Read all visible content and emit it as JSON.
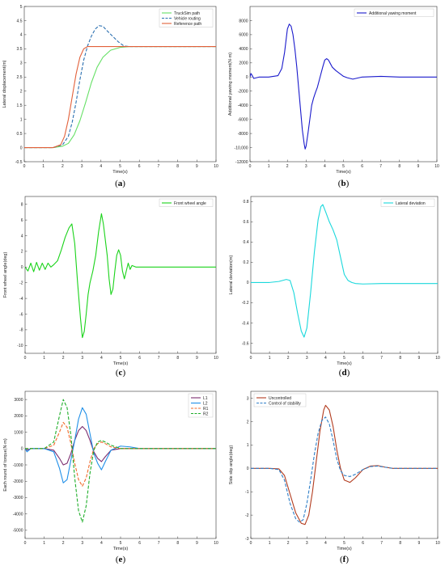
{
  "chart_data": [
    {
      "type": "line",
      "panel": "(a)",
      "panel_letter": "a",
      "xlabel": "Time(s)",
      "ylabel": "Lateral displacement(m)",
      "xlim": [
        0,
        10
      ],
      "ylim": [
        -0.5,
        5
      ],
      "xticks": [
        0,
        1,
        2,
        3,
        4,
        5,
        6,
        7,
        8,
        9,
        10
      ],
      "yticks": [
        -0.5,
        0,
        0.5,
        1,
        1.5,
        2,
        2.5,
        3,
        3.5,
        4,
        4.5,
        5
      ],
      "ytick_labels": [
        "-0.5",
        "0",
        "0.5",
        "1",
        "1.5",
        "2",
        "2.5",
        "3",
        "3.5",
        "4",
        "4.5",
        "5"
      ],
      "legend": "top-right",
      "series": [
        {
          "name": "TruckSim path",
          "color": "#66e066",
          "dash": "solid",
          "x": [
            0,
            1.5,
            2,
            2.3,
            2.6,
            2.9,
            3.2,
            3.5,
            3.8,
            4.1,
            4.5,
            5,
            5.5,
            6,
            10
          ],
          "y": [
            0,
            0,
            0.05,
            0.15,
            0.45,
            0.95,
            1.6,
            2.3,
            2.85,
            3.2,
            3.45,
            3.55,
            3.58,
            3.58,
            3.58
          ]
        },
        {
          "name": "Vehicle routing",
          "color": "#2a6fb0",
          "dash": "4,2",
          "x": [
            0,
            1.5,
            2,
            2.3,
            2.5,
            2.7,
            2.9,
            3.1,
            3.3,
            3.5,
            3.7,
            3.9,
            4.1,
            4.3,
            4.6,
            4.9,
            5.2,
            5.5,
            6,
            10
          ],
          "y": [
            0,
            0,
            0.1,
            0.4,
            0.9,
            1.6,
            2.4,
            3.1,
            3.6,
            3.95,
            4.2,
            4.32,
            4.3,
            4.15,
            3.95,
            3.75,
            3.6,
            3.58,
            3.58,
            3.58
          ]
        },
        {
          "name": "Reference path",
          "color": "#e2603a",
          "dash": "solid",
          "x": [
            0,
            1.5,
            1.9,
            2.1,
            2.3,
            2.5,
            2.7,
            2.9,
            3.1,
            3.3,
            3.6,
            10
          ],
          "y": [
            0,
            0,
            0.1,
            0.4,
            1.0,
            1.8,
            2.6,
            3.2,
            3.5,
            3.58,
            3.58,
            3.58
          ]
        }
      ]
    },
    {
      "type": "line",
      "panel": "(b)",
      "panel_letter": "b",
      "xlabel": "Time(s)",
      "ylabel": "Additional yawing moment(N·m)",
      "xlim": [
        0,
        10
      ],
      "ylim": [
        -12000,
        10000
      ],
      "xticks": [
        0,
        1,
        2,
        3,
        4,
        5,
        6,
        7,
        8,
        9,
        10
      ],
      "yticks": [
        -12000,
        -10000,
        -8000,
        -6000,
        -4000,
        -2000,
        0,
        2000,
        4000,
        6000,
        8000
      ],
      "ytick_labels": [
        "-12000",
        "-10,000",
        "-8000",
        "-6000",
        "-4000",
        "-2000",
        "0",
        "2000",
        "4000",
        "6000",
        "8000"
      ],
      "legend": "top-right",
      "series": [
        {
          "name": "Additional yawing moment",
          "color": "#1a1acc",
          "dash": "solid",
          "x": [
            0,
            0.05,
            0.1,
            0.2,
            0.35,
            0.5,
            1,
            1.5,
            1.7,
            1.85,
            2,
            2.1,
            2.2,
            2.3,
            2.4,
            2.5,
            2.6,
            2.7,
            2.8,
            2.9,
            2.95,
            3,
            3.1,
            3.2,
            3.3,
            3.4,
            3.5,
            3.6,
            3.7,
            3.8,
            3.9,
            4,
            4.1,
            4.2,
            4.3,
            4.4,
            4.6,
            4.8,
            5,
            5.2,
            5.5,
            6,
            7,
            8,
            9,
            10
          ],
          "y": [
            0,
            500,
            300,
            -200,
            -100,
            0,
            0,
            200,
            1200,
            3500,
            6800,
            7500,
            7200,
            6000,
            4000,
            1500,
            -1500,
            -4500,
            -7500,
            -9500,
            -10200,
            -9800,
            -8000,
            -6000,
            -4000,
            -3000,
            -2200,
            -1500,
            -500,
            500,
            1500,
            2400,
            2600,
            2400,
            1900,
            1400,
            900,
            500,
            100,
            -100,
            -300,
            0,
            100,
            0,
            0,
            0
          ]
        }
      ]
    },
    {
      "type": "line",
      "panel": "(c)",
      "panel_letter": "c",
      "xlabel": "Time(s)",
      "ylabel": "Front wheel angle(deg)",
      "xlim": [
        0,
        10
      ],
      "ylim": [
        -11,
        9
      ],
      "xticks": [
        0,
        1,
        2,
        3,
        4,
        5,
        6,
        7,
        8,
        9,
        10
      ],
      "yticks": [
        -10,
        -8,
        -6,
        -4,
        -2,
        0,
        2,
        4,
        6,
        8
      ],
      "ytick_labels": [
        "-10",
        "-8",
        "-6",
        "-4",
        "-2",
        "0",
        "2",
        "4",
        "6",
        "8"
      ],
      "legend": "top-right",
      "series": [
        {
          "name": "Front wheel angle",
          "color": "#1ad31a",
          "dash": "solid",
          "x": [
            0,
            0.15,
            0.3,
            0.45,
            0.6,
            0.75,
            0.9,
            1.05,
            1.2,
            1.35,
            1.5,
            1.7,
            1.9,
            2.1,
            2.3,
            2.45,
            2.6,
            2.75,
            2.9,
            3.0,
            3.1,
            3.2,
            3.3,
            3.4,
            3.55,
            3.7,
            3.85,
            4.0,
            4.1,
            4.2,
            4.3,
            4.4,
            4.5,
            4.6,
            4.7,
            4.8,
            4.9,
            5.0,
            5.1,
            5.2,
            5.3,
            5.4,
            5.5,
            5.6,
            5.8,
            6,
            7,
            8,
            9,
            10
          ],
          "y": [
            0,
            -0.5,
            0.5,
            -0.6,
            0.6,
            -0.4,
            0.5,
            -0.3,
            0.5,
            0,
            0.3,
            0.8,
            2.2,
            3.8,
            5.0,
            5.5,
            3,
            -2,
            -6.5,
            -9.0,
            -8.2,
            -6,
            -3.5,
            -2,
            -0.5,
            1.5,
            4.5,
            6.8,
            5.5,
            3.5,
            1.5,
            -1.5,
            -3.5,
            -2.8,
            -0.5,
            1.5,
            2.2,
            1.5,
            -0.5,
            -1.5,
            -0.5,
            0.5,
            -0.3,
            0.2,
            0,
            0,
            0,
            0,
            0,
            0
          ]
        }
      ]
    },
    {
      "type": "line",
      "panel": "(d)",
      "panel_letter": "d",
      "xlabel": "Time(s)",
      "ylabel": "Lateral deviation(m)",
      "xlim": [
        0,
        10
      ],
      "ylim": [
        -0.7,
        0.85
      ],
      "xticks": [
        0,
        1,
        2,
        3,
        4,
        5,
        6,
        7,
        8,
        9,
        10
      ],
      "yticks": [
        -0.6,
        -0.4,
        -0.2,
        0,
        0.2,
        0.4,
        0.6,
        0.8
      ],
      "ytick_labels": [
        "-0.6",
        "-0.4",
        "-0.2",
        "0",
        "0.2",
        "0.4",
        "0.6",
        "0.8"
      ],
      "legend": "top-right",
      "series": [
        {
          "name": "Lateral deviation",
          "color": "#1ad8dc",
          "dash": "solid",
          "x": [
            0,
            1,
            1.5,
            1.9,
            2.1,
            2.3,
            2.5,
            2.7,
            2.85,
            3.0,
            3.2,
            3.4,
            3.6,
            3.75,
            3.85,
            4.0,
            4.2,
            4.4,
            4.6,
            4.8,
            5.0,
            5.2,
            5.4,
            5.6,
            6,
            7,
            8,
            9,
            10
          ],
          "y": [
            0,
            0,
            0.01,
            0.03,
            0.02,
            -0.1,
            -0.3,
            -0.48,
            -0.54,
            -0.45,
            -0.1,
            0.3,
            0.62,
            0.75,
            0.77,
            0.7,
            0.6,
            0.52,
            0.42,
            0.25,
            0.08,
            0.02,
            0,
            -0.01,
            -0.015,
            -0.01,
            -0.01,
            -0.01,
            -0.01
          ]
        }
      ]
    },
    {
      "type": "line",
      "panel": "(e)",
      "panel_letter": "e",
      "xlabel": "Time(s)",
      "ylabel": "Each round of torque(N·m)",
      "xlim": [
        0,
        10
      ],
      "ylim": [
        -5500,
        3500
      ],
      "xticks": [
        0,
        1,
        2,
        3,
        4,
        5,
        6,
        7,
        8,
        9,
        10
      ],
      "yticks": [
        -5000,
        -4000,
        -3000,
        -2000,
        -1000,
        0,
        1000,
        2000,
        3000
      ],
      "ytick_labels": [
        "-5000",
        "-4000",
        "-3000",
        "-2000",
        "-1000",
        "0",
        "1000",
        "2000",
        "3000"
      ],
      "legend": "top-right",
      "series": [
        {
          "name": "L1",
          "color": "#7b2c6e",
          "dash": "solid",
          "x": [
            0,
            0.1,
            0.3,
            1,
            1.5,
            1.8,
            2.0,
            2.2,
            2.4,
            2.6,
            2.8,
            3.0,
            3.2,
            3.4,
            3.6,
            3.8,
            4.0,
            4.2,
            4.5,
            5,
            6,
            7,
            10
          ],
          "y": [
            0,
            -100,
            0,
            0,
            -100,
            -600,
            -1000,
            -900,
            -300,
            500,
            1100,
            1350,
            1100,
            500,
            -200,
            -600,
            -800,
            -500,
            -100,
            0,
            0,
            0,
            0
          ]
        },
        {
          "name": "L2",
          "color": "#1f8fe8",
          "dash": "solid",
          "x": [
            0,
            0.1,
            0.3,
            1,
            1.5,
            1.8,
            2.0,
            2.2,
            2.4,
            2.6,
            2.8,
            3.0,
            3.2,
            3.4,
            3.6,
            3.8,
            4.0,
            4.2,
            4.5,
            5,
            5.5,
            6,
            7,
            10
          ],
          "y": [
            0,
            -200,
            0,
            0,
            -200,
            -1200,
            -2100,
            -1900,
            -700,
            500,
            1800,
            2500,
            2100,
            900,
            -300,
            -900,
            -1300,
            -800,
            -100,
            150,
            100,
            0,
            0,
            0
          ]
        },
        {
          "name": "R1",
          "color": "#f06a2a",
          "dash": "4,2",
          "x": [
            0,
            0.3,
            1,
            1.5,
            1.8,
            2.0,
            2.2,
            2.4,
            2.6,
            2.8,
            3.0,
            3.2,
            3.4,
            3.6,
            3.8,
            4.0,
            4.2,
            4.5,
            5,
            6,
            10
          ],
          "y": [
            0,
            0,
            0,
            200,
            1000,
            1600,
            1300,
            300,
            -900,
            -1900,
            -2300,
            -1800,
            -800,
            0,
            300,
            400,
            300,
            100,
            0,
            0,
            0
          ]
        },
        {
          "name": "R2",
          "color": "#1fae2a",
          "dash": "4,2",
          "x": [
            0,
            0.3,
            1,
            1.5,
            1.8,
            2.0,
            2.2,
            2.4,
            2.6,
            2.8,
            3.0,
            3.2,
            3.4,
            3.6,
            3.8,
            4.0,
            4.2,
            4.5,
            5,
            6,
            10
          ],
          "y": [
            0,
            0,
            0,
            400,
            2000,
            3000,
            2500,
            800,
            -1800,
            -3800,
            -4500,
            -3500,
            -1500,
            -100,
            400,
            500,
            400,
            200,
            0,
            0,
            0
          ]
        }
      ]
    },
    {
      "type": "line",
      "panel": "(f)",
      "panel_letter": "f",
      "xlabel": "Time(s)",
      "ylabel": "Side slip angle(deg)",
      "xlim": [
        0,
        10
      ],
      "ylim": [
        -3,
        3.3
      ],
      "xticks": [
        0,
        1,
        2,
        3,
        4,
        5,
        6,
        7,
        8,
        9,
        10
      ],
      "yticks": [
        -3,
        -2,
        -1,
        0,
        1,
        2,
        3
      ],
      "ytick_labels": [
        "-3",
        "-2",
        "-1",
        "0",
        "1",
        "2",
        "3"
      ],
      "legend": "top-left",
      "series": [
        {
          "name": "Uncontrolled",
          "color": "#b23b1e",
          "dash": "solid",
          "x": [
            0,
            1,
            1.5,
            1.8,
            2.1,
            2.4,
            2.7,
            2.9,
            3.1,
            3.3,
            3.5,
            3.7,
            3.9,
            4.0,
            4.2,
            4.4,
            4.6,
            4.8,
            5.0,
            5.3,
            5.6,
            6,
            6.4,
            6.8,
            7.2,
            7.6,
            8,
            9,
            10
          ],
          "y": [
            0,
            0,
            -0.02,
            -0.3,
            -1.1,
            -1.9,
            -2.35,
            -2.4,
            -2.0,
            -1.0,
            0.3,
            1.6,
            2.5,
            2.7,
            2.5,
            1.8,
            0.8,
            0,
            -0.5,
            -0.6,
            -0.4,
            -0.05,
            0.1,
            0.12,
            0.05,
            0,
            0,
            0,
            0
          ]
        },
        {
          "name": "Control of stability",
          "color": "#2f7fc8",
          "dash": "4,2",
          "x": [
            0,
            1,
            1.5,
            1.8,
            2.1,
            2.4,
            2.6,
            2.8,
            3.0,
            3.2,
            3.4,
            3.6,
            3.8,
            4.0,
            4.2,
            4.4,
            4.6,
            4.8,
            5.0,
            5.3,
            5.6,
            6,
            6.4,
            6.8,
            7.2,
            7.6,
            8,
            9,
            10
          ],
          "y": [
            0,
            0,
            -0.05,
            -0.5,
            -1.5,
            -2.15,
            -2.3,
            -2.2,
            -1.5,
            -0.5,
            0.6,
            1.5,
            2.05,
            2.2,
            1.9,
            1.2,
            0.4,
            -0.1,
            -0.3,
            -0.35,
            -0.25,
            -0.05,
            0.08,
            0.1,
            0.05,
            0,
            0,
            0,
            0
          ]
        }
      ]
    }
  ]
}
